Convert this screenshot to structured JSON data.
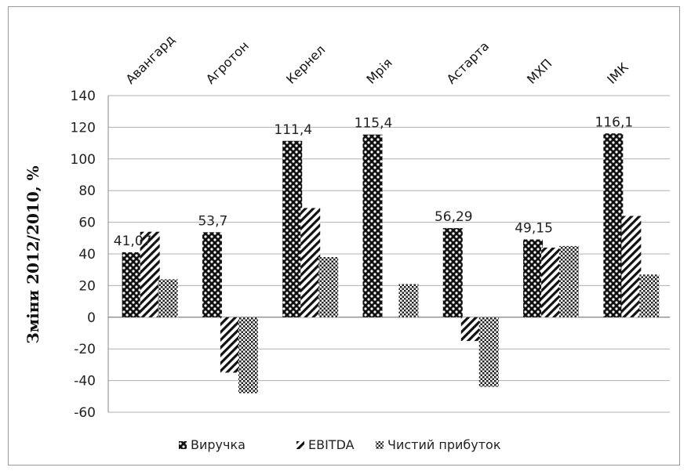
{
  "chart_data": {
    "type": "bar",
    "categories": [
      "Авангард",
      "Агротон",
      "Кернел",
      "Мрія",
      "Астарта",
      "МХП",
      "ІМК"
    ],
    "series": [
      {
        "name": "Виручка",
        "values": [
          41.07,
          53.7,
          111.4,
          115.4,
          56.29,
          49.15,
          116.1
        ],
        "labels": [
          "41,07",
          "53,7",
          "111,4",
          "115,4",
          "56,29",
          "49,15",
          "116,1"
        ]
      },
      {
        "name": "EBITDA",
        "values": [
          54,
          -35,
          69,
          null,
          -15,
          44,
          64
        ]
      },
      {
        "name": "Чистий прибуток",
        "values": [
          24,
          -48,
          38,
          21,
          -44,
          45,
          27
        ]
      }
    ],
    "ylabel": "Зміни 2012/2010, %",
    "ylim": [
      -60,
      140
    ],
    "yticks": [
      -60,
      -40,
      -20,
      0,
      20,
      40,
      60,
      80,
      100,
      120,
      140
    ],
    "grid": true,
    "legend": "bottom",
    "colors": {
      "bar": "#111111",
      "fill": "#ffffff",
      "grid": "#b0b0b0",
      "axis": "#888888"
    }
  }
}
